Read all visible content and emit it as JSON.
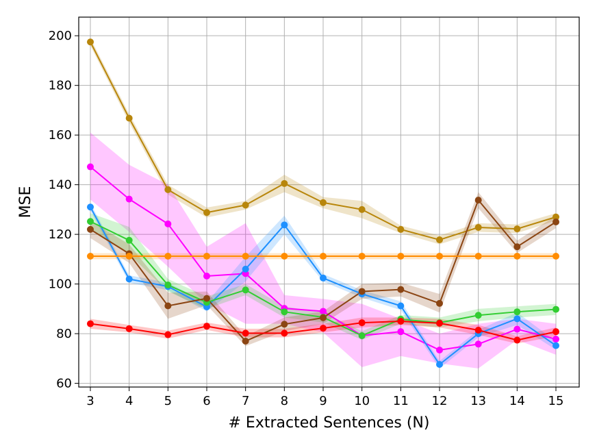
{
  "chart_data": {
    "type": "line",
    "title": "",
    "xlabel": "# Extracted Sentences (N)",
    "ylabel": "MSE",
    "x": [
      3,
      4,
      5,
      6,
      7,
      8,
      9,
      10,
      11,
      12,
      13,
      14,
      15
    ],
    "xlim": [
      2.7,
      15.6
    ],
    "ylim": [
      58.5,
      207.5
    ],
    "yticks": [
      60,
      80,
      100,
      120,
      140,
      160,
      180,
      200
    ],
    "grid": true,
    "series": [
      {
        "name": "gold",
        "color": "#b8860b",
        "values": [
          197.5,
          166.8,
          138.0,
          128.8,
          131.8,
          140.5,
          132.8,
          130.0,
          122.0,
          117.8,
          122.8,
          122.2,
          127.0
        ],
        "lower": [
          196.0,
          165.0,
          136.0,
          126.8,
          130.0,
          137.0,
          130.5,
          126.5,
          120.5,
          116.0,
          121.0,
          120.5,
          125.5
        ],
        "upper": [
          199.0,
          168.5,
          140.0,
          130.8,
          133.5,
          144.0,
          135.0,
          133.5,
          123.5,
          119.5,
          124.5,
          124.0,
          128.5
        ]
      },
      {
        "name": "magenta",
        "color": "#ff00ff",
        "values": [
          147.2,
          134.2,
          124.2,
          103.2,
          104.2,
          90.2,
          89.0,
          79.2,
          80.8,
          73.4,
          75.8,
          81.8,
          77.8
        ],
        "lower": [
          134.0,
          121.0,
          107.0,
          92.0,
          84.0,
          84.0,
          80.5,
          66.5,
          71.0,
          68.0,
          66.0,
          77.5,
          71.5
        ],
        "upper": [
          161.0,
          148.0,
          140.0,
          115.0,
          124.5,
          95.5,
          94.0,
          92.0,
          86.0,
          80.0,
          84.0,
          86.0,
          84.0
        ]
      },
      {
        "name": "blue",
        "color": "#1e90ff",
        "values": [
          131.0,
          102.0,
          99.0,
          90.8,
          106.0,
          123.8,
          102.4,
          96.0,
          91.2,
          67.6,
          80.0,
          86.0,
          75.2
        ],
        "lower": [
          129.5,
          100.5,
          97.5,
          89.0,
          101.0,
          120.0,
          101.0,
          94.5,
          89.5,
          66.0,
          78.5,
          83.5,
          73.5
        ],
        "upper": [
          132.5,
          103.5,
          100.5,
          92.5,
          111.0,
          127.5,
          104.0,
          97.5,
          93.0,
          69.0,
          81.5,
          88.5,
          77.0
        ]
      },
      {
        "name": "green",
        "color": "#32cd32",
        "values": [
          125.2,
          117.6,
          99.6,
          92.6,
          97.6,
          88.8,
          86.6,
          79.2,
          85.8,
          84.4,
          87.4,
          88.8,
          89.8
        ],
        "lower": [
          122.0,
          112.0,
          97.0,
          90.0,
          95.5,
          86.5,
          84.5,
          77.5,
          84.0,
          82.5,
          85.0,
          86.5,
          87.5
        ],
        "upper": [
          128.5,
          123.0,
          102.0,
          95.0,
          100.0,
          91.0,
          88.5,
          81.0,
          87.5,
          86.5,
          90.0,
          91.0,
          92.0
        ]
      },
      {
        "name": "brown",
        "color": "#8b4513",
        "values": [
          122.0,
          112.2,
          91.2,
          94.2,
          77.0,
          83.8,
          86.4,
          97.0,
          97.8,
          92.2,
          133.8,
          115.0,
          125.0
        ],
        "lower": [
          118.5,
          108.5,
          86.0,
          91.5,
          75.0,
          81.0,
          84.0,
          94.0,
          95.0,
          88.5,
          130.5,
          112.5,
          122.5
        ],
        "upper": [
          125.5,
          116.0,
          96.5,
          97.0,
          79.0,
          86.5,
          89.0,
          100.0,
          100.5,
          96.0,
          137.0,
          117.5,
          127.5
        ]
      },
      {
        "name": "orange",
        "color": "#ff8c00",
        "values": [
          111.2,
          111.2,
          111.2,
          111.2,
          111.2,
          111.2,
          111.2,
          111.2,
          111.2,
          111.2,
          111.2,
          111.2,
          111.2
        ],
        "lower": [
          110.0,
          110.0,
          110.0,
          110.0,
          110.0,
          110.0,
          110.0,
          110.0,
          110.0,
          110.0,
          110.0,
          110.0,
          110.0
        ],
        "upper": [
          112.4,
          112.4,
          112.4,
          112.4,
          112.4,
          112.4,
          112.4,
          112.4,
          112.4,
          112.4,
          112.4,
          112.4,
          112.4
        ]
      },
      {
        "name": "red",
        "color": "#ff0000",
        "values": [
          84.0,
          82.0,
          79.6,
          83.0,
          80.2,
          80.2,
          82.2,
          84.4,
          85.0,
          84.2,
          81.4,
          77.4,
          80.8
        ],
        "lower": [
          82.0,
          80.5,
          78.0,
          81.5,
          78.5,
          78.5,
          80.5,
          82.5,
          83.5,
          82.5,
          79.5,
          76.0,
          79.0
        ],
        "upper": [
          86.0,
          83.5,
          81.2,
          84.5,
          82.0,
          82.0,
          84.0,
          86.5,
          86.5,
          86.0,
          83.5,
          79.0,
          82.5
        ]
      }
    ]
  }
}
